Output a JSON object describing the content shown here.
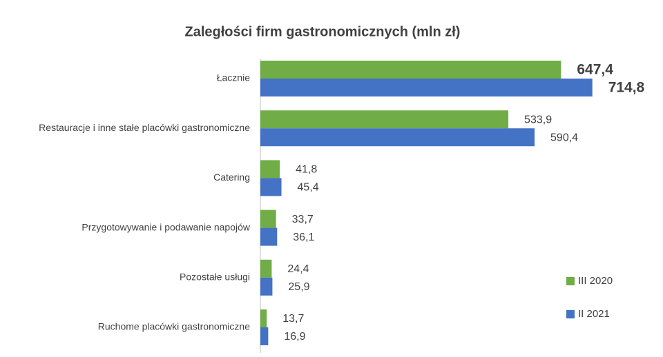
{
  "chart_data": {
    "type": "hbar",
    "title": "Zaległości firm gastronomicznych (mln zł)",
    "categories": [
      "Łacznie",
      "Restauracje i inne stałe placówki gastronomiczne",
      "Catering",
      "Przygotowywanie i podawanie napojów",
      "Pozostałe usługi",
      "Ruchome placówki gastronomiczne"
    ],
    "series": [
      {
        "name": "III 2020",
        "color": "#70ad47",
        "values": [
          647.4,
          533.9,
          41.8,
          33.7,
          24.4,
          13.7
        ],
        "value_labels": [
          "647,4",
          "533,9",
          "41,8",
          "33,7",
          "24,4",
          "13,7"
        ]
      },
      {
        "name": "II 2021",
        "color": "#4472c4",
        "values": [
          714.8,
          590.4,
          45.4,
          36.1,
          25.9,
          16.9
        ],
        "value_labels": [
          "714,8",
          "590,4",
          "45,4",
          "36,1",
          "25,9",
          "16,9"
        ]
      }
    ],
    "xlim": [
      0,
      800
    ],
    "legend": "right"
  }
}
